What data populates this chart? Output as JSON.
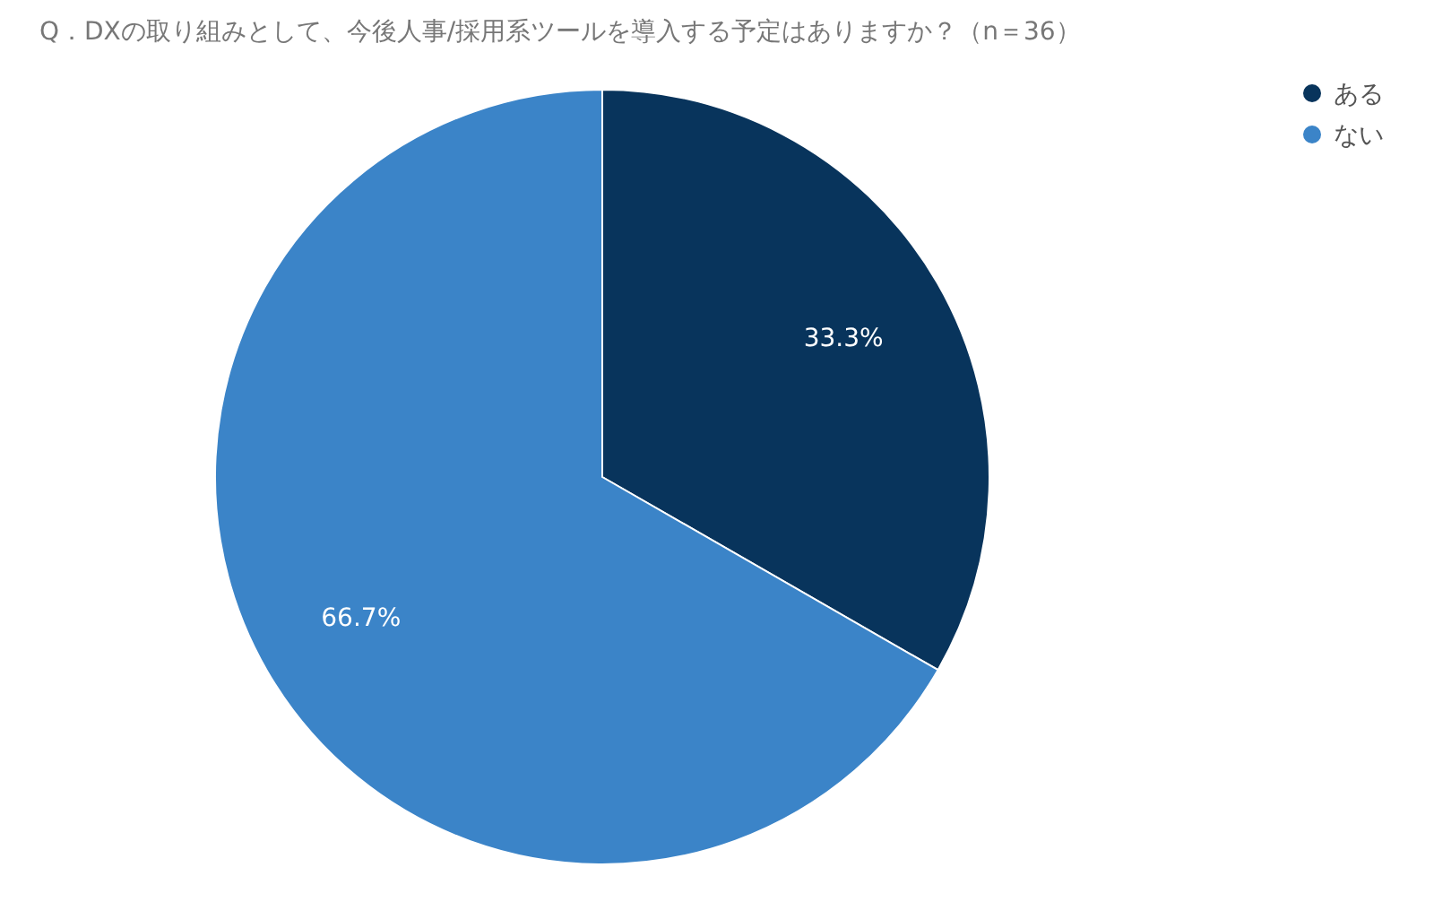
{
  "chart_data": {
    "type": "pie",
    "title": "Q．DXの取り組みとして、今後人事/採用系ツールを導入する予定はありますか？（n＝36）",
    "categories": [
      "ある",
      "ない"
    ],
    "values": [
      33.3,
      66.7
    ],
    "colors": [
      "#08345c",
      "#3b84c8"
    ],
    "value_labels": [
      "33.3%",
      "66.7%"
    ],
    "legend": "top right"
  }
}
